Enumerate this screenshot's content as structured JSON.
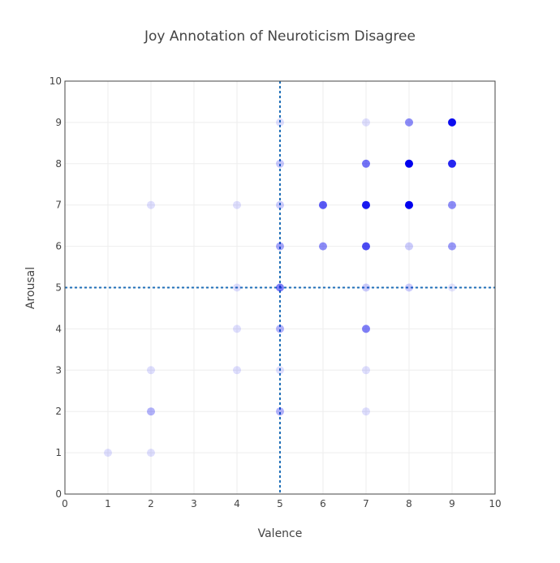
{
  "chart_data": {
    "type": "scatter",
    "title": "Joy Annotation of Neuroticism Disagree",
    "xlabel": "Valence",
    "ylabel": "Arousal",
    "xlim": [
      0,
      10
    ],
    "ylim": [
      0,
      10
    ],
    "xticks": [
      0,
      1,
      2,
      3,
      4,
      5,
      6,
      7,
      8,
      9,
      10
    ],
    "yticks": [
      0,
      1,
      2,
      3,
      4,
      5,
      6,
      7,
      8,
      9,
      10
    ],
    "grid": true,
    "marker_color": "#0000ee",
    "reference_line_color": "#1f6fb8",
    "reference_lines": {
      "x": 5,
      "y": 5
    },
    "points": [
      {
        "x": 9,
        "y": 9,
        "opacity": 0.95
      },
      {
        "x": 8,
        "y": 9,
        "opacity": 0.45
      },
      {
        "x": 7,
        "y": 9,
        "opacity": 0.13
      },
      {
        "x": 5,
        "y": 9,
        "opacity": 0.13
      },
      {
        "x": 5,
        "y": 8,
        "opacity": 0.22
      },
      {
        "x": 7,
        "y": 8,
        "opacity": 0.55
      },
      {
        "x": 8,
        "y": 8,
        "opacity": 1.0
      },
      {
        "x": 9,
        "y": 8,
        "opacity": 0.85
      },
      {
        "x": 2,
        "y": 7,
        "opacity": 0.13
      },
      {
        "x": 4,
        "y": 7,
        "opacity": 0.13
      },
      {
        "x": 5,
        "y": 7,
        "opacity": 0.2
      },
      {
        "x": 6,
        "y": 7,
        "opacity": 0.65
      },
      {
        "x": 7,
        "y": 7,
        "opacity": 0.9
      },
      {
        "x": 8,
        "y": 7,
        "opacity": 1.0
      },
      {
        "x": 9,
        "y": 7,
        "opacity": 0.45
      },
      {
        "x": 5,
        "y": 6,
        "opacity": 0.35
      },
      {
        "x": 6,
        "y": 6,
        "opacity": 0.45
      },
      {
        "x": 7,
        "y": 6,
        "opacity": 0.7
      },
      {
        "x": 8,
        "y": 6,
        "opacity": 0.2
      },
      {
        "x": 9,
        "y": 6,
        "opacity": 0.4
      },
      {
        "x": 4,
        "y": 5,
        "opacity": 0.13
      },
      {
        "x": 5,
        "y": 5,
        "opacity": 0.5
      },
      {
        "x": 7,
        "y": 5,
        "opacity": 0.2
      },
      {
        "x": 8,
        "y": 5,
        "opacity": 0.2
      },
      {
        "x": 9,
        "y": 5,
        "opacity": 0.1
      },
      {
        "x": 4,
        "y": 4,
        "opacity": 0.13
      },
      {
        "x": 5,
        "y": 4,
        "opacity": 0.3
      },
      {
        "x": 7,
        "y": 4,
        "opacity": 0.5
      },
      {
        "x": 2,
        "y": 3,
        "opacity": 0.13
      },
      {
        "x": 4,
        "y": 3,
        "opacity": 0.13
      },
      {
        "x": 5,
        "y": 3,
        "opacity": 0.13
      },
      {
        "x": 7,
        "y": 3,
        "opacity": 0.13
      },
      {
        "x": 2,
        "y": 2,
        "opacity": 0.3
      },
      {
        "x": 5,
        "y": 2,
        "opacity": 0.3
      },
      {
        "x": 7,
        "y": 2,
        "opacity": 0.13
      },
      {
        "x": 1,
        "y": 1,
        "opacity": 0.13
      },
      {
        "x": 2,
        "y": 1,
        "opacity": 0.13
      }
    ]
  }
}
